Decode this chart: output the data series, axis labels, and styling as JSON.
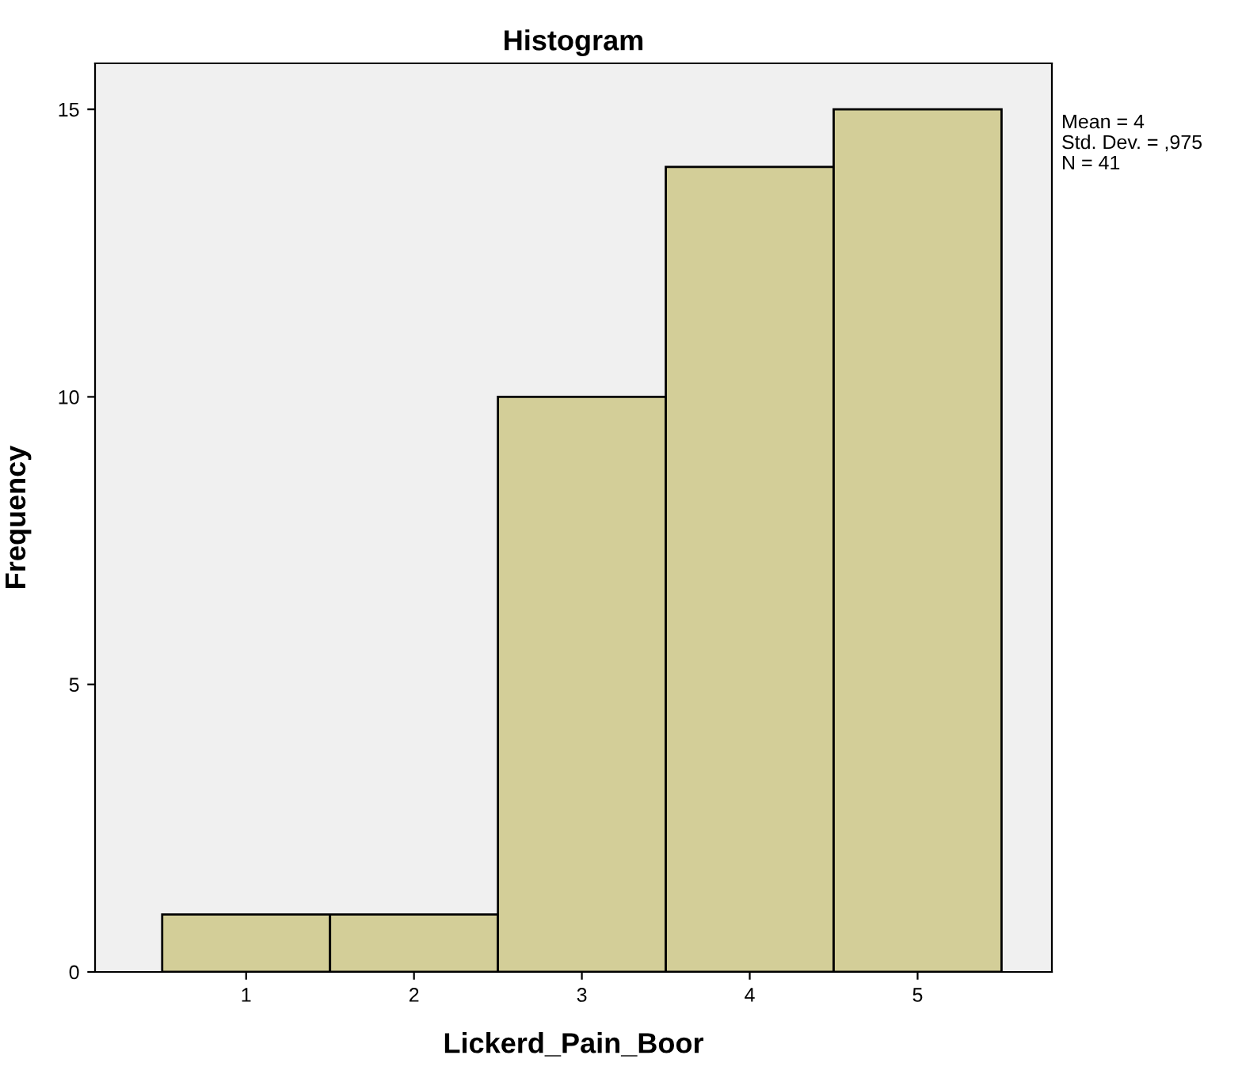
{
  "chart_data": {
    "type": "histogram",
    "title": "Histogram",
    "xlabel": "Lickerd_Pain_Boor",
    "ylabel": "Frequency",
    "bins": [
      0.5,
      1.5,
      2.5,
      3.5,
      4.5,
      5.5
    ],
    "values": [
      1,
      1,
      10,
      14,
      15
    ],
    "color": "#d3ce98",
    "xlim": [
      0.1,
      5.8
    ],
    "xticks": [
      1,
      2,
      3,
      4,
      5
    ],
    "ylim": [
      0,
      15.8
    ],
    "yticks": [
      0,
      5,
      10,
      15
    ],
    "grid": false,
    "annotations": [
      "Mean = 4",
      "Std. Dev. = ,975",
      "N = 41"
    ]
  }
}
